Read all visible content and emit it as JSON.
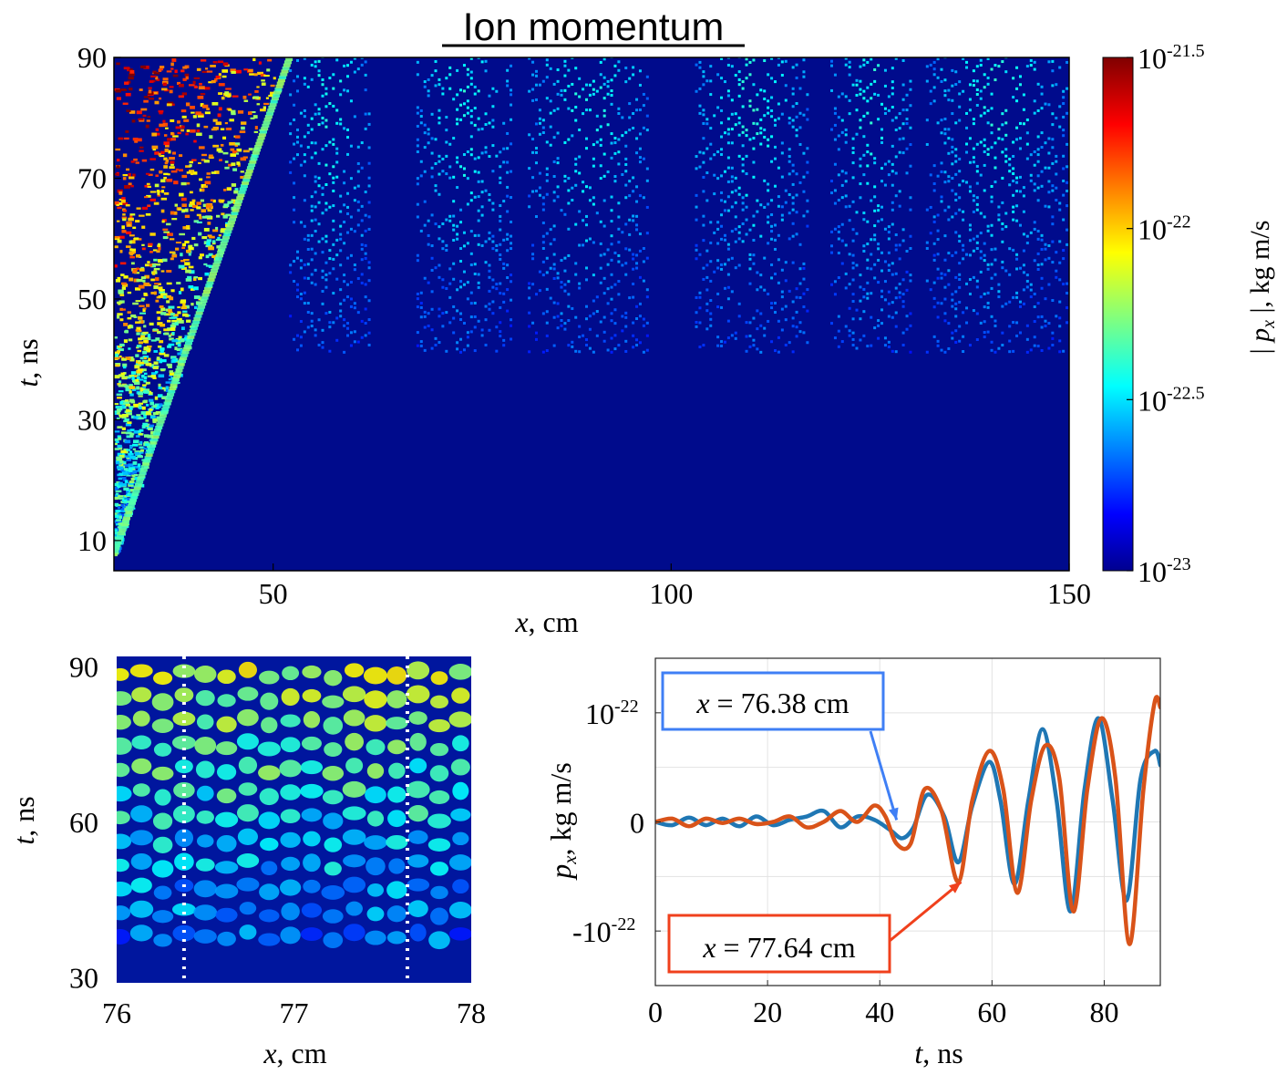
{
  "figure_title": "Ion momentum",
  "chart_data": [
    {
      "id": "main_heatmap",
      "type": "heatmap",
      "title": "Ion momentum",
      "xlabel_var": "x",
      "xlabel_unit": ", cm",
      "ylabel_var": "t",
      "ylabel_unit": ", ns",
      "xlim": [
        30,
        150
      ],
      "ylim": [
        5,
        90
      ],
      "xticks": [
        50,
        100,
        150
      ],
      "yticks": [
        10,
        30,
        50,
        70,
        90
      ],
      "front": {
        "x_start": 30,
        "t_start": 8,
        "x_end": 52,
        "t_end": 90
      },
      "wave_bands_x": [
        [
          52,
          62
        ],
        [
          68,
          80
        ],
        [
          82,
          97
        ],
        [
          103,
          117
        ],
        [
          120,
          130
        ],
        [
          132,
          150
        ]
      ],
      "wave_onset_t": 45,
      "colorbar": {
        "label": "| p_x |, kg m/s",
        "scale": "log10",
        "range": [
          -23,
          -21.5
        ],
        "ticks": [
          {
            "exp": -21.5,
            "label": "10",
            "sup": "-21.5"
          },
          {
            "exp": -22,
            "label": "10",
            "sup": "-22"
          },
          {
            "exp": -22.5,
            "label": "10",
            "sup": "-22.5"
          },
          {
            "exp": -23,
            "label": "10",
            "sup": "-23"
          }
        ]
      }
    },
    {
      "id": "zoom_heatmap",
      "type": "heatmap",
      "xlabel_var": "x",
      "xlabel_unit": ", cm",
      "ylabel_var": "t",
      "ylabel_unit": ", ns",
      "xlim": [
        76,
        78
      ],
      "ylim": [
        29,
        92
      ],
      "xticks": [
        76,
        77,
        78
      ],
      "yticks": [
        30,
        60,
        90
      ],
      "marked_positions_cm": [
        76.38,
        77.64
      ]
    },
    {
      "id": "line_plot",
      "type": "line",
      "xlabel_var": "t",
      "xlabel_unit": ", ns",
      "ylabel_var": "p",
      "ylabel_sub": "x",
      "ylabel_unit": ", kg m/s",
      "xlim": [
        0,
        90
      ],
      "ylim": [
        -1.5,
        1.5
      ],
      "y_unit_note": "values in units of 1e-22 kg m/s",
      "xticks": [
        0,
        20,
        40,
        60,
        80
      ],
      "yticks": [
        {
          "value": 1,
          "label": "10",
          "sup": "-22"
        },
        {
          "value": 0,
          "label": "0",
          "sup": ""
        },
        {
          "value": -1,
          "label": "-10",
          "sup": "-22"
        }
      ],
      "grid": true,
      "series": [
        {
          "name": "x = 76.38 cm",
          "color": "#1f77b4",
          "t": [
            0,
            3,
            6,
            9,
            12,
            15,
            18,
            21,
            24,
            27,
            30,
            33,
            36,
            39,
            42,
            44,
            46,
            48.5,
            51.5,
            54,
            56.5,
            59.5,
            61.5,
            64,
            66.5,
            69,
            71.5,
            74,
            76.5,
            79,
            81.5,
            84,
            86.5,
            89,
            90
          ],
          "values": [
            0,
            -0.03,
            0.04,
            -0.03,
            0.03,
            -0.04,
            0.05,
            -0.03,
            0.02,
            0.05,
            0.1,
            -0.05,
            0.05,
            0.02,
            -0.08,
            -0.15,
            -0.05,
            0.25,
            0.05,
            -0.37,
            0.15,
            0.55,
            0.2,
            -0.57,
            0.2,
            0.85,
            0.2,
            -0.82,
            0.3,
            0.95,
            0.2,
            -0.72,
            0.4,
            0.65,
            0.52
          ]
        },
        {
          "name": "x = 77.64 cm",
          "color": "#d95319",
          "t": [
            0,
            3,
            6,
            9,
            12,
            15,
            18,
            21,
            24,
            27,
            30,
            33,
            36,
            39,
            41,
            43,
            45.5,
            48,
            51,
            54,
            56.5,
            59.5,
            62,
            64.5,
            67,
            69.5,
            72,
            74.5,
            77,
            79.5,
            82,
            84.5,
            87,
            89,
            90
          ],
          "values": [
            0,
            0.03,
            -0.04,
            0.03,
            -0.01,
            0.03,
            -0.02,
            0.0,
            0.05,
            -0.05,
            0.0,
            0.1,
            0.0,
            0.15,
            0.05,
            -0.2,
            -0.2,
            0.3,
            0.1,
            -0.55,
            0.2,
            0.65,
            0.3,
            -0.65,
            0.2,
            0.7,
            0.4,
            -0.82,
            0.3,
            0.95,
            0.4,
            -1.12,
            0.3,
            1.1,
            1.05
          ]
        }
      ],
      "annotations": [
        {
          "text": "x = 76.38 cm",
          "color": "#3f7ff5",
          "points_to": {
            "t": 43,
            "value": -0.05
          }
        },
        {
          "text": "x = 77.64 cm",
          "color": "#f0401c",
          "points_to": {
            "t": 54.5,
            "value": -0.55
          }
        }
      ]
    }
  ]
}
